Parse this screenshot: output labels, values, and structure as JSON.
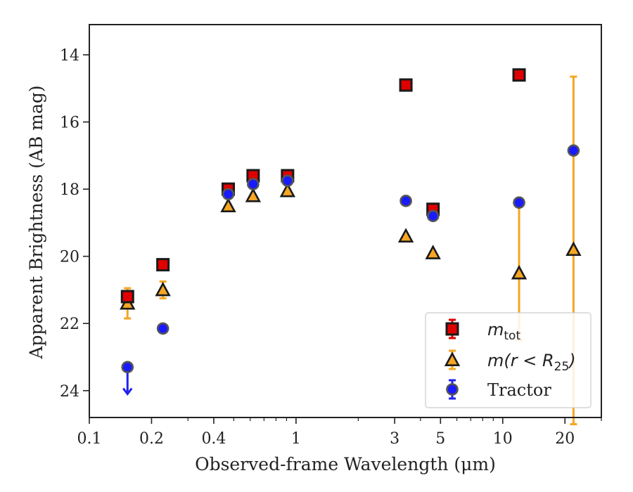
{
  "chart_data": {
    "type": "scatter",
    "title": "",
    "xlabel": "Observed-frame Wavelength (μm)",
    "ylabel": "Apparent Brightness (AB mag)",
    "x_scale": "log",
    "xlim": [
      0.1,
      30
    ],
    "ylim": [
      24.8,
      13.1
    ],
    "y_inverted": true,
    "x_ticks": [
      0.1,
      0.2,
      0.4,
      1,
      3,
      5,
      10,
      20
    ],
    "x_tick_labels": [
      "0.1",
      "0.2",
      "0.4",
      "1",
      "3",
      "5",
      "10",
      "20"
    ],
    "y_ticks": [
      14,
      16,
      18,
      20,
      22,
      24
    ],
    "y_tick_labels": [
      "14",
      "16",
      "18",
      "20",
      "22",
      "24"
    ],
    "grid": false,
    "legend_position": "lower-right",
    "series": [
      {
        "name": "m_tot",
        "legend_label": {
          "base": "m",
          "sub": "tot"
        },
        "marker": "square",
        "face_color": "#e00000",
        "edge_color": "#1a1a1a",
        "err_color": "#e00000",
        "points": [
          {
            "x": 0.153,
            "y": 21.2,
            "err": 0.1
          },
          {
            "x": 0.227,
            "y": 20.25,
            "err": 0.07
          },
          {
            "x": 0.47,
            "y": 18.0,
            "err": 0.06
          },
          {
            "x": 0.62,
            "y": 17.6,
            "err": 0.05
          },
          {
            "x": 0.91,
            "y": 17.6,
            "err": 0.05
          },
          {
            "x": 3.4,
            "y": 14.9,
            "err": 0.05
          },
          {
            "x": 4.6,
            "y": 18.6,
            "err": 0.05
          },
          {
            "x": 12.0,
            "y": 14.6,
            "err": 0.05
          }
        ]
      },
      {
        "name": "m(r<R25)",
        "legend_label": {
          "base": "m(r < R",
          "sub": "25",
          "tail": ")"
        },
        "marker": "triangle",
        "face_color": "#f5a623",
        "edge_color": "#1a1a1a",
        "err_color": "#f5a623",
        "points": [
          {
            "x": 0.153,
            "y": 21.4,
            "err": 0.45
          },
          {
            "x": 0.227,
            "y": 21.0,
            "err": 0.25
          },
          {
            "x": 0.47,
            "y": 18.5,
            "err": 0.05
          },
          {
            "x": 0.62,
            "y": 18.2,
            "err": 0.05
          },
          {
            "x": 0.91,
            "y": 18.05,
            "err": 0.05
          },
          {
            "x": 3.4,
            "y": 19.4,
            "err": 0.05
          },
          {
            "x": 4.6,
            "y": 19.9,
            "err": 0.05
          },
          {
            "x": 12.0,
            "y": 20.5,
            "err": 2.0
          },
          {
            "x": 22.0,
            "y": 19.8,
            "err_low": 5.15,
            "err_high": 5.2
          }
        ]
      },
      {
        "name": "Tractor",
        "legend_label": {
          "base": "Tractor"
        },
        "marker": "circle",
        "face_color": "#1a1aff",
        "edge_color": "#555555",
        "err_color": "#2222ee",
        "points": [
          {
            "x": 0.153,
            "y": 23.3,
            "upper_limit": true
          },
          {
            "x": 0.227,
            "y": 22.15,
            "err": 0.05
          },
          {
            "x": 0.47,
            "y": 18.15,
            "err": 0.05
          },
          {
            "x": 0.62,
            "y": 17.85,
            "err": 0.05
          },
          {
            "x": 0.91,
            "y": 17.75,
            "err": 0.05
          },
          {
            "x": 3.4,
            "y": 18.35,
            "err": 0.05
          },
          {
            "x": 4.6,
            "y": 18.8,
            "err": 0.05
          },
          {
            "x": 12.0,
            "y": 18.4,
            "err": 0.05
          },
          {
            "x": 22.0,
            "y": 16.85,
            "err": 0.05
          }
        ]
      }
    ]
  }
}
